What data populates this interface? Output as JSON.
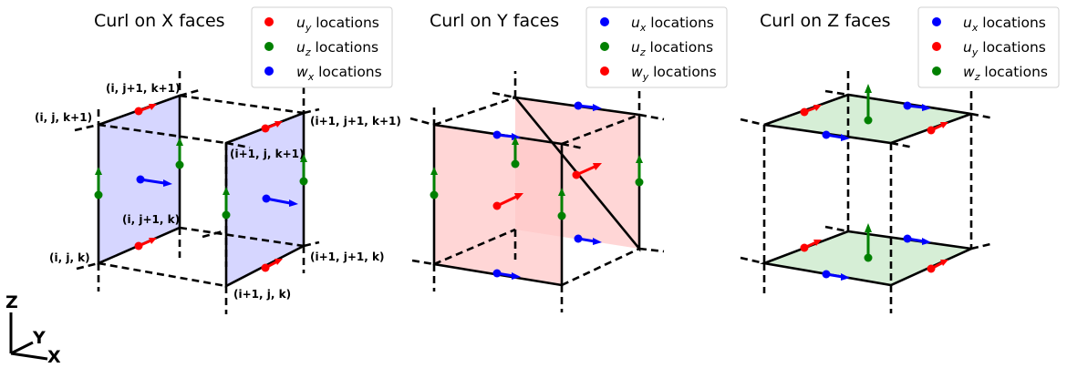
{
  "panels": [
    {
      "title": "Curl on X faces",
      "legend": [
        {
          "sym": "u",
          "sub": "y",
          "text": " locations",
          "color": "#ff0000"
        },
        {
          "sym": "u",
          "sub": "z",
          "text": " locations",
          "color": "#008000"
        },
        {
          "sym": "w",
          "sub": "x",
          "text": " locations",
          "color": "#0000ff"
        }
      ],
      "face_color": "#c8c8ff"
    },
    {
      "title": "Curl on Y faces",
      "legend": [
        {
          "sym": "u",
          "sub": "x",
          "text": " locations",
          "color": "#0000ff"
        },
        {
          "sym": "u",
          "sub": "z",
          "text": " locations",
          "color": "#008000"
        },
        {
          "sym": "w",
          "sub": "y",
          "text": " locations",
          "color": "#ff0000"
        }
      ],
      "face_color": "#ffc8c8"
    },
    {
      "title": "Curl on Z faces",
      "legend": [
        {
          "sym": "u",
          "sub": "x",
          "text": " locations",
          "color": "#0000ff"
        },
        {
          "sym": "u",
          "sub": "y",
          "text": " locations",
          "color": "#ff0000"
        },
        {
          "sym": "w",
          "sub": "z",
          "text": " locations",
          "color": "#008000"
        }
      ],
      "face_color": "#d2ecd2"
    }
  ],
  "node_labels": {
    "ijk1": "(i, j, k+1)",
    "ij1k1": "(i, j+1, k+1)",
    "i1j1k1": "(i+1, j+1, k+1)",
    "i1jk1": "(i+1, j, k+1)",
    "ij1k": "(i, j+1, k)",
    "ijk": "(i, j, k)",
    "i1j1k": "(i+1, j+1, k)",
    "i1jk": "(i+1, j, k)"
  },
  "axes": {
    "z": "Z",
    "y": "Y",
    "x": "X"
  }
}
